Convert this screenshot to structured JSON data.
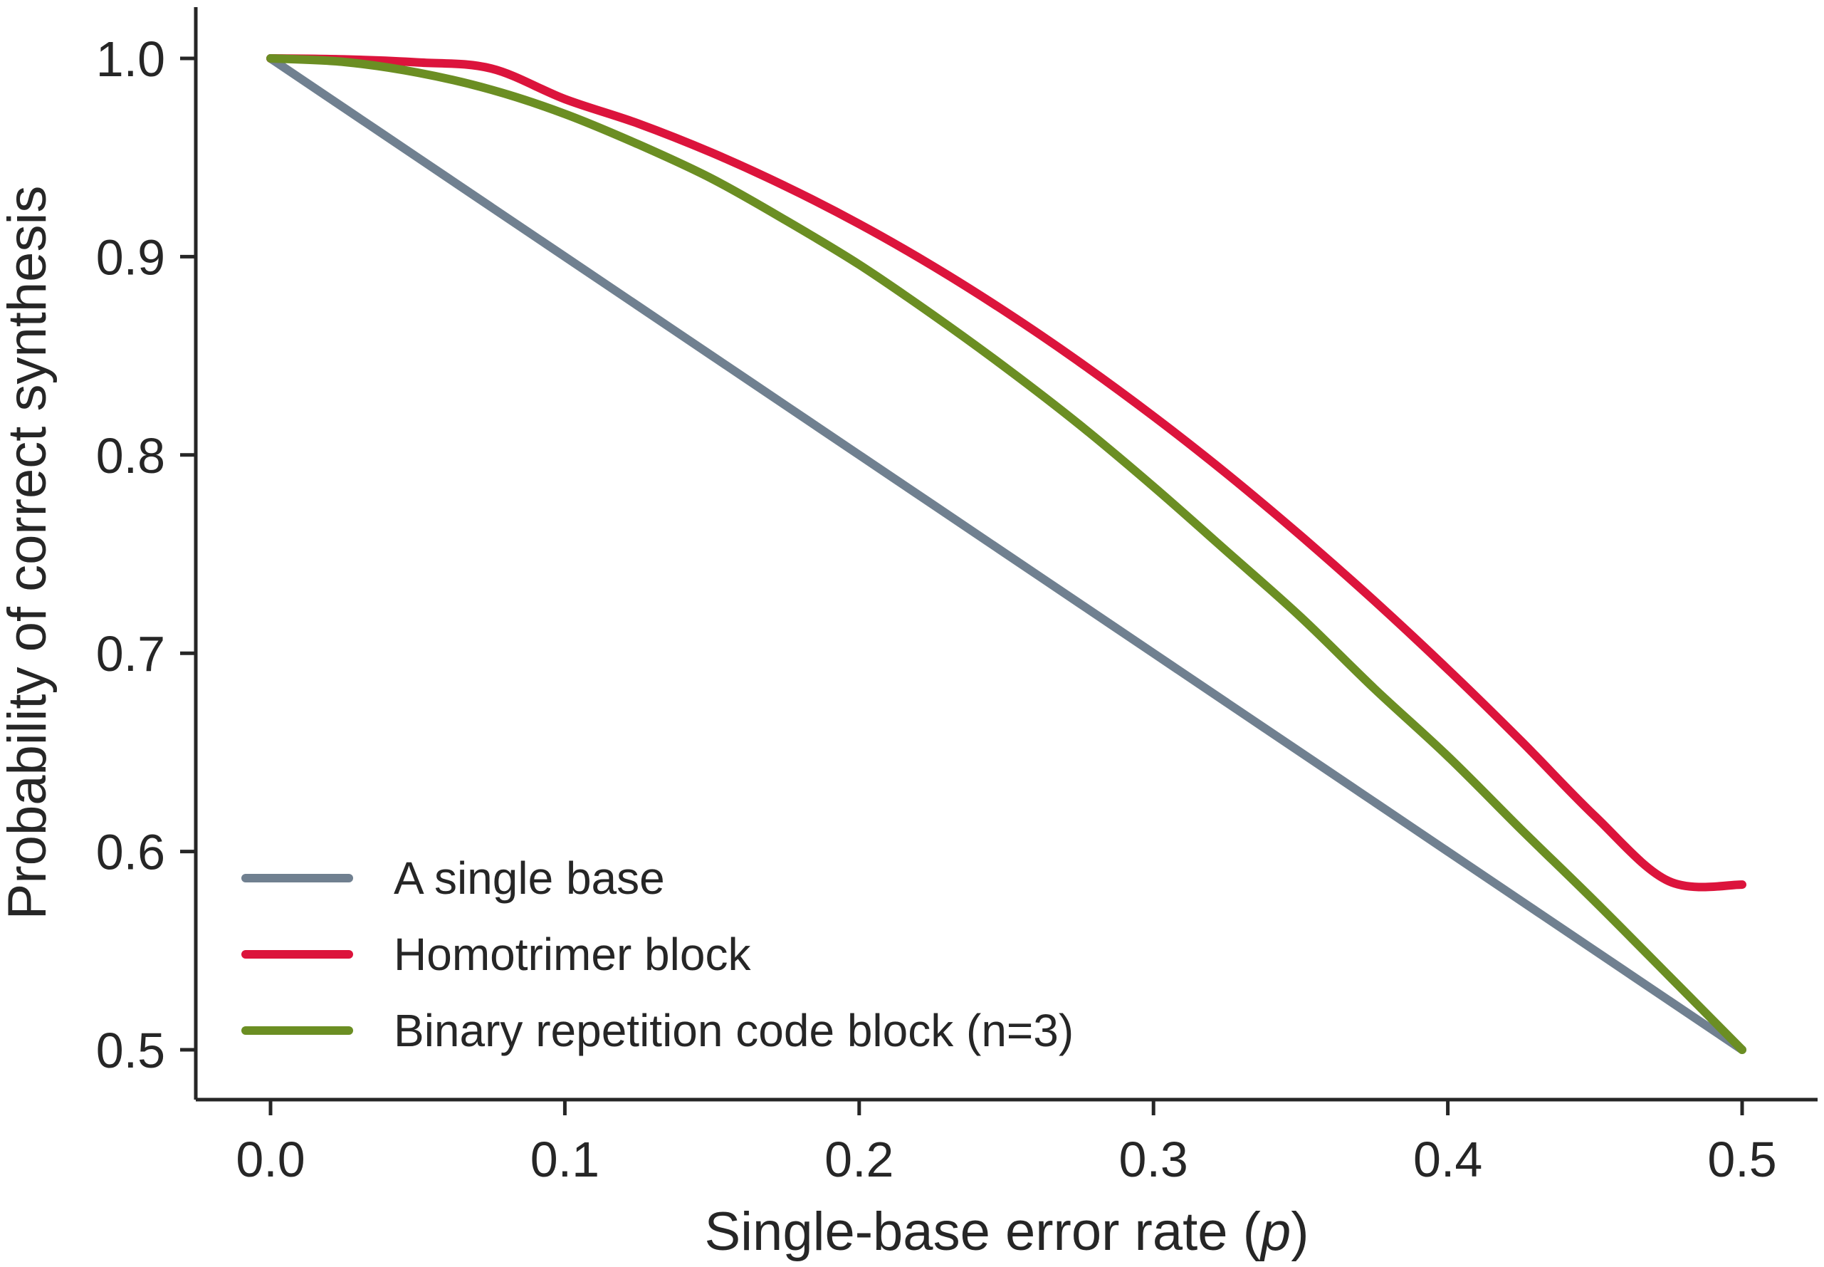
{
  "chart_data": {
    "type": "line",
    "title": "",
    "xlabel_text": "Single-base error rate (",
    "xlabel_var": "p",
    "xlabel_close": ")",
    "ylabel": "Probability of correct synthesis",
    "xlim": [
      0,
      0.5
    ],
    "ylim": [
      0.5,
      1.0
    ],
    "xticks": [
      "0.0",
      "0.1",
      "0.2",
      "0.3",
      "0.4",
      "0.5"
    ],
    "yticks": [
      "0.5",
      "0.6",
      "0.7",
      "0.8",
      "0.9",
      "1.0"
    ],
    "grid": false,
    "legend_position": "bottom-left",
    "x": [
      0.0,
      0.025,
      0.05,
      0.075,
      0.1,
      0.125,
      0.15,
      0.175,
      0.2,
      0.225,
      0.25,
      0.275,
      0.3,
      0.325,
      0.35,
      0.375,
      0.4,
      0.425,
      0.45,
      0.475,
      0.5
    ],
    "series": [
      {
        "name": "A single base",
        "color": "#708090",
        "values": [
          1.0,
          0.975,
          0.95,
          0.925,
          0.9,
          0.875,
          0.85,
          0.825,
          0.8,
          0.775,
          0.75,
          0.725,
          0.7,
          0.675,
          0.65,
          0.625,
          0.6,
          0.575,
          0.55,
          0.525,
          0.5
        ]
      },
      {
        "name": "Homotrimer block",
        "color": "#dc143c",
        "values": [
          1.0,
          0.9995,
          0.998,
          0.9949,
          0.9795,
          0.9671,
          0.9524,
          0.9355,
          0.9165,
          0.8953,
          0.872,
          0.8467,
          0.8195,
          0.7904,
          0.7593,
          0.7265,
          0.6919,
          0.6556,
          0.6178,
          0.5851,
          0.5833
        ]
      },
      {
        "name": "Binary repetition code block (n=3)",
        "color": "#6b8e23",
        "values": [
          1.0,
          0.9982,
          0.9928,
          0.9842,
          0.972,
          0.9566,
          0.9393,
          0.9184,
          0.896,
          0.8707,
          0.8438,
          0.8151,
          0.784,
          0.7513,
          0.7183,
          0.6822,
          0.648,
          0.611,
          0.5748,
          0.5375,
          0.5
        ]
      }
    ]
  }
}
